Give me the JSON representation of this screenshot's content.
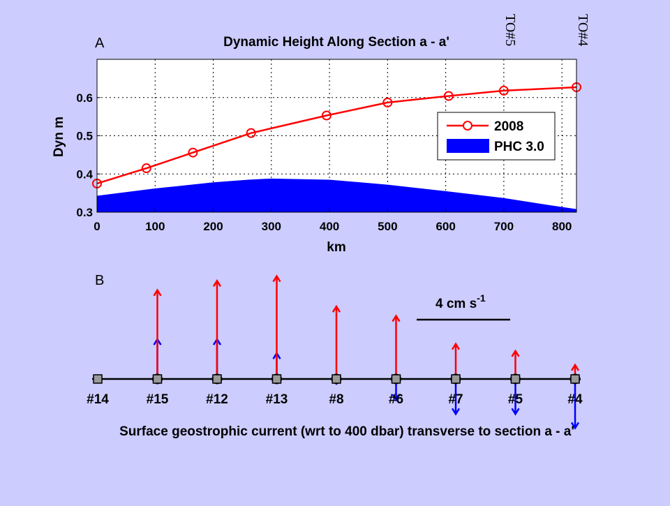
{
  "chart_data": [
    {
      "panel_label": "A",
      "type": "line",
      "title": "Dynamic Height Along Section a - a'",
      "xlabel": "km",
      "ylabel": "Dyn m",
      "xlim": [
        0,
        825
      ],
      "ylim": [
        0.3,
        0.7
      ],
      "xticks": [
        0,
        100,
        200,
        300,
        400,
        500,
        600,
        700,
        800
      ],
      "yticks": [
        0.3,
        0.4,
        0.5,
        0.6
      ],
      "grid": true,
      "legend_position": "upper-right",
      "top_markers": [
        {
          "label": "TO#5",
          "x": 700
        },
        {
          "label": "TO#4",
          "x": 825
        }
      ],
      "series": [
        {
          "name": "2008",
          "type": "line",
          "color": "#ff0000",
          "marker": "open-circle",
          "x": [
            0,
            85,
            165,
            265,
            395,
            500,
            605,
            700,
            825
          ],
          "y": [
            0.375,
            0.415,
            0.456,
            0.507,
            0.553,
            0.587,
            0.604,
            0.618,
            0.627
          ]
        },
        {
          "name": "PHC 3.0",
          "type": "area",
          "color": "#0000ff",
          "x": [
            0,
            100,
            200,
            260,
            300,
            400,
            500,
            600,
            700,
            780,
            825
          ],
          "y": [
            0.343,
            0.362,
            0.378,
            0.385,
            0.388,
            0.385,
            0.372,
            0.355,
            0.337,
            0.318,
            0.308
          ]
        }
      ]
    },
    {
      "panel_label": "B",
      "type": "vector",
      "caption": "Surface geostrophic current (wrt to 400 dbar) transverse to section a - a'",
      "scale_bar": {
        "label": "4 cm s",
        "exponent": "-1",
        "value": 4
      },
      "stations": [
        "#14",
        "#15",
        "#12",
        "#13",
        "#8",
        "#6",
        "#7",
        "#5",
        "#4"
      ],
      "colors": {
        "series_2008": "#ff0000",
        "phc": "#0000ff",
        "station": "#999999"
      },
      "vectors": [
        {
          "position": 1,
          "v_2008": 3.8,
          "v_phc": 1.7
        },
        {
          "position": 2,
          "v_2008": 4.2,
          "v_phc": 1.7
        },
        {
          "position": 3,
          "v_2008": 4.4,
          "v_phc": 1.1
        },
        {
          "position": 4,
          "v_2008": 3.1,
          "v_phc": -0.2
        },
        {
          "position": 5,
          "v_2008": 2.7,
          "v_phc": -0.9
        },
        {
          "position": 6,
          "v_2008": 1.5,
          "v_phc": -1.5
        },
        {
          "position": 7,
          "v_2008": 1.2,
          "v_phc": -1.5
        },
        {
          "position": 8,
          "v_2008": 0.6,
          "v_phc": -2.1
        }
      ]
    }
  ]
}
